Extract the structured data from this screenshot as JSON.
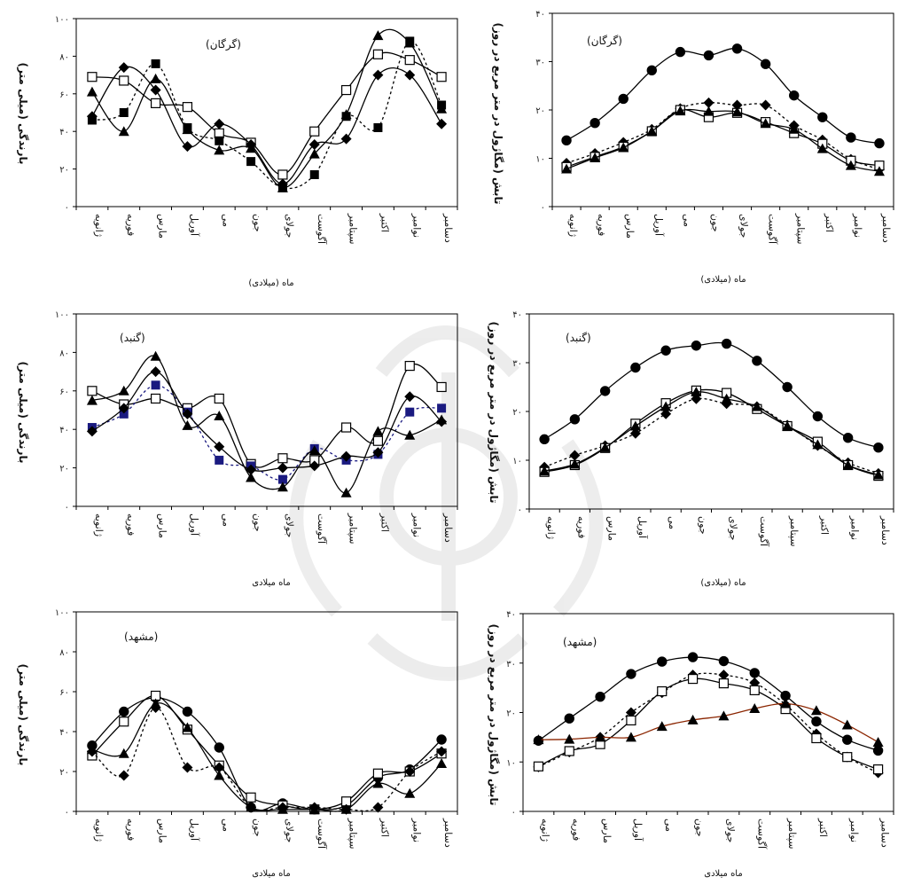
{
  "months": [
    "ژانویه",
    "فوریه",
    "مارس",
    "آوریل",
    "می",
    "جون",
    "جولای",
    "آگوست",
    "سپتامبر",
    "اکتبر",
    "نوامبر",
    "دسامبر"
  ],
  "chart_data": [
    {
      "type": "line",
      "station": "(گرگان)",
      "ylabel": "بارندگی (میلی متر)",
      "xlabel": "ماه (میلادی)",
      "ylim": [
        0,
        100
      ],
      "yticks": [
        "۰",
        "۲۰",
        "۴۰",
        "۶۰",
        "۸۰",
        "۱۰۰"
      ],
      "series": [
        {
          "marker": "square-open",
          "line": "solid",
          "color": "#000000",
          "values": [
            69,
            67,
            55,
            53,
            39,
            34,
            17,
            40,
            62,
            81,
            78,
            69
          ]
        },
        {
          "marker": "square",
          "line": "dashed",
          "color": "#000000",
          "values": [
            46,
            50,
            76,
            42,
            35,
            24,
            10,
            17,
            48,
            42,
            88,
            54
          ]
        },
        {
          "marker": "diamond",
          "line": "solid",
          "color": "#000000",
          "values": [
            48,
            74,
            62,
            32,
            44,
            33,
            12,
            33,
            36,
            70,
            70,
            44
          ]
        },
        {
          "marker": "triangle",
          "line": "solid",
          "color": "#000000",
          "values": [
            61,
            40,
            68,
            41,
            30,
            31,
            10,
            28,
            49,
            91,
            87,
            52
          ]
        }
      ]
    },
    {
      "type": "line",
      "station": "(گرگان)",
      "ylabel": "تابش (مگاژول در متر مربع در روز)",
      "xlabel": "ماه (میلادی)",
      "ylim": [
        0,
        40
      ],
      "yticks": [
        "۰",
        "۱۰",
        "۲۰",
        "۳۰",
        "۴۰"
      ],
      "series": [
        {
          "marker": "circle",
          "line": "solid",
          "color": "#000000",
          "values": [
            13.7,
            17.3,
            22.3,
            28.2,
            32.0,
            31.3,
            32.7,
            29.5,
            23.0,
            18.5,
            14.3,
            13.1
          ]
        },
        {
          "marker": "diamond",
          "line": "dashed",
          "color": "#000000",
          "values": [
            9.0,
            11.0,
            13.3,
            16.0,
            20.3,
            21.5,
            21.0,
            21.0,
            16.8,
            13.8,
            9.8,
            7.7
          ]
        },
        {
          "marker": "square-open",
          "line": "solid",
          "color": "#000000",
          "values": [
            8.2,
            10.3,
            12.4,
            15.6,
            20.0,
            18.5,
            19.4,
            17.5,
            15.2,
            13.0,
            9.5,
            8.5
          ]
        },
        {
          "marker": "triangle",
          "line": "solid",
          "color": "#000000",
          "values": [
            7.8,
            10.1,
            12.2,
            15.6,
            19.8,
            19.7,
            19.6,
            17.2,
            16.0,
            12.0,
            8.5,
            7.3
          ]
        }
      ]
    },
    {
      "type": "line",
      "station": "(گنبد)",
      "ylabel": "بارندگی (میلی متر)",
      "xlabel": "ماه میلادی",
      "ylim": [
        0,
        100
      ],
      "yticks": [
        "۰",
        "۲۰",
        "۴۰",
        "۶۰",
        "۸۰",
        "۱۰۰"
      ],
      "series": [
        {
          "marker": "square-open",
          "line": "solid",
          "color": "#000000",
          "values": [
            60,
            53,
            56,
            51,
            56,
            22,
            25,
            24,
            41,
            34,
            73,
            62
          ]
        },
        {
          "marker": "square",
          "line": "dashed",
          "color": "#1a1a80",
          "values": [
            41,
            48,
            63,
            49,
            24,
            21,
            14,
            30,
            24,
            27,
            49,
            51
          ]
        },
        {
          "marker": "diamond",
          "line": "solid",
          "color": "#000000",
          "values": [
            39,
            51,
            70,
            48,
            31,
            19,
            20,
            21,
            26,
            28,
            57,
            44
          ]
        },
        {
          "marker": "triangle",
          "line": "solid",
          "color": "#000000",
          "values": [
            55,
            60,
            78,
            42,
            47,
            15,
            10,
            29,
            7,
            39,
            37,
            45
          ]
        }
      ]
    },
    {
      "type": "line",
      "station": "(گنبد)",
      "ylabel": "تابش (مگاژول در متر مربع در روز)",
      "xlabel": "ماه (میلادی)",
      "ylim": [
        0,
        40
      ],
      "yticks": [
        "۰",
        "۱۰",
        "۲۰",
        "۳۰",
        "۴۰"
      ],
      "series": [
        {
          "marker": "circle",
          "line": "solid",
          "color": "#000000",
          "values": [
            14.3,
            18.4,
            24.2,
            29.0,
            32.5,
            33.5,
            33.9,
            30.4,
            25.0,
            19.0,
            14.6,
            12.6
          ]
        },
        {
          "marker": "diamond",
          "line": "dashed",
          "color": "#000000",
          "values": [
            8.6,
            11.0,
            13.0,
            15.5,
            19.5,
            22.6,
            21.6,
            21.0,
            17.2,
            13.0,
            9.5,
            7.3
          ]
        },
        {
          "marker": "square-open",
          "line": "solid",
          "color": "#000000",
          "values": [
            7.6,
            9.0,
            12.5,
            17.5,
            21.7,
            24.3,
            23.8,
            20.5,
            17.0,
            13.8,
            9.0,
            6.8
          ]
        },
        {
          "marker": "triangle",
          "line": "solid",
          "color": "#000000",
          "values": [
            7.8,
            9.2,
            12.6,
            17.0,
            21.0,
            24.0,
            22.6,
            21.0,
            17.0,
            13.2,
            9.0,
            7.0
          ]
        }
      ]
    },
    {
      "type": "line",
      "station": "(مشهد)",
      "ylabel": "بارندگی (میلی متر)",
      "xlabel": "ماه میلادی",
      "ylim": [
        0,
        100
      ],
      "yticks": [
        "۰",
        "۲۰",
        "۴۰",
        "۶۰",
        "۸۰",
        "۱۰۰"
      ],
      "series": [
        {
          "marker": "circle",
          "line": "solid",
          "color": "#000000",
          "values": [
            33,
            50,
            57,
            50,
            32,
            2,
            4,
            1,
            3,
            17,
            21,
            36
          ]
        },
        {
          "marker": "square-open",
          "line": "solid",
          "color": "#000000",
          "values": [
            28,
            45,
            58,
            41,
            23,
            7,
            3,
            1,
            5,
            19,
            20,
            29
          ]
        },
        {
          "marker": "diamond",
          "line": "dashed",
          "color": "#000000",
          "values": [
            30,
            18,
            52,
            22,
            22,
            2,
            2,
            2,
            1,
            2,
            20,
            30
          ]
        },
        {
          "marker": "triangle",
          "line": "solid",
          "color": "#000000",
          "values": [
            31,
            29,
            54,
            42,
            18,
            2,
            1,
            1,
            1,
            14,
            9,
            24
          ]
        }
      ]
    },
    {
      "type": "line",
      "station": "(مشهد)",
      "ylabel": "تابش (مگاژول در متر مربع در روز)",
      "xlabel": "ماه میلادی",
      "ylim": [
        0,
        40
      ],
      "yticks": [
        "۰",
        "۱۰",
        "۲۰",
        "۳۰",
        "۴۰"
      ],
      "series": [
        {
          "marker": "circle",
          "line": "solid",
          "color": "#000000",
          "values": [
            14.3,
            18.8,
            23.2,
            27.8,
            30.3,
            31.2,
            30.4,
            28.0,
            23.4,
            18.2,
            14.5,
            12.3
          ]
        },
        {
          "marker": "diamond",
          "line": "dashed",
          "color": "#000000",
          "values": [
            9.0,
            12.0,
            15.0,
            20.0,
            24.0,
            27.6,
            27.6,
            26.0,
            21.6,
            15.7,
            11.0,
            7.8
          ]
        },
        {
          "marker": "square-open",
          "line": "solid",
          "color": "#000000",
          "values": [
            9.1,
            12.2,
            13.6,
            18.4,
            24.3,
            26.8,
            25.9,
            24.5,
            20.7,
            14.8,
            11.0,
            8.5
          ]
        },
        {
          "marker": "triangle",
          "line": "solid",
          "color": "#8b2500",
          "values": [
            14.5,
            14.6,
            15.0,
            15.0,
            17.2,
            18.5,
            19.3,
            20.8,
            21.8,
            20.4,
            17.5,
            14.0
          ]
        }
      ]
    }
  ]
}
